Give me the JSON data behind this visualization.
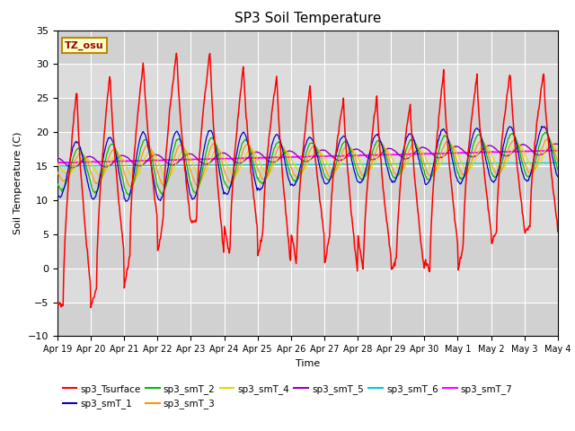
{
  "title": "SP3 Soil Temperature",
  "xlabel": "Time",
  "ylabel": "Soil Temperature (C)",
  "ylim": [
    -10,
    35
  ],
  "tz_label": "TZ_osu",
  "x_tick_labels": [
    "Apr 19",
    "Apr 20",
    "Apr 21",
    "Apr 22",
    "Apr 23",
    "Apr 24",
    "Apr 25",
    "Apr 26",
    "Apr 27",
    "Apr 28",
    "Apr 29",
    "Apr 30",
    "May 1",
    "May 2",
    "May 3",
    "May 4"
  ],
  "series_colors": {
    "sp3_Tsurface": "#FF0000",
    "sp3_smT_1": "#0000CC",
    "sp3_smT_2": "#00BB00",
    "sp3_smT_3": "#FF9900",
    "sp3_smT_4": "#DDDD00",
    "sp3_smT_5": "#9900BB",
    "sp3_smT_6": "#00CCCC",
    "sp3_smT_7": "#FF00FF"
  },
  "day_peaks": [
    26.5,
    29.0,
    30.5,
    32.0,
    32.0,
    30.0,
    28.5,
    27.0,
    25.0,
    25.5,
    24.5,
    29.0,
    28.5,
    29.0,
    29.0
  ],
  "night_troughs": [
    -5.5,
    -3.0,
    2.0,
    7.0,
    6.5,
    1.5,
    5.5,
    0.5,
    5.0,
    -0.5,
    1.5,
    -0.5,
    3.5,
    5.5,
    6.0
  ],
  "peak_time": 0.58,
  "trough_time": 0.17
}
